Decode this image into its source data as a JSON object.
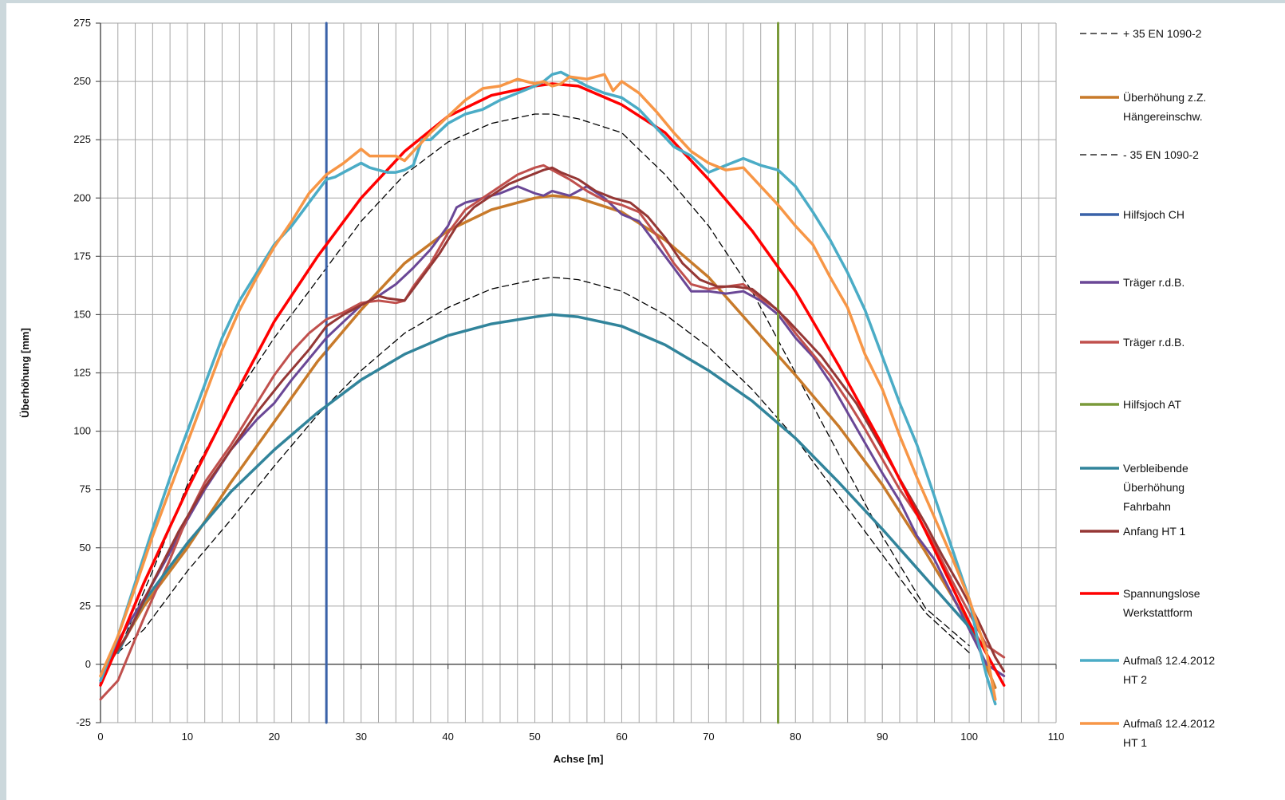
{
  "chart_data": {
    "type": "line",
    "xlabel": "Achse [m]",
    "ylabel": "Überhöhung [mm]",
    "xlim": [
      0,
      110
    ],
    "ylim": [
      -25,
      275
    ],
    "x_ticks": [
      0,
      10,
      20,
      30,
      40,
      50,
      60,
      70,
      80,
      90,
      100,
      110
    ],
    "y_ticks": [
      -25,
      0,
      25,
      50,
      75,
      100,
      125,
      150,
      175,
      200,
      225,
      250,
      275
    ],
    "x_minor_step": 2,
    "grid": "on",
    "legend_position": "right",
    "series": [
      {
        "name": "+ 35 EN 1090-2",
        "color": "#000000",
        "dashed": true,
        "width": 1.3,
        "x": [
          2,
          6,
          10,
          15,
          20,
          25,
          30,
          35,
          40,
          45,
          50,
          52,
          55,
          60,
          65,
          70,
          75,
          80,
          85,
          90,
          95,
          100
        ],
        "y": [
          5,
          40,
          77,
          112,
          140,
          165,
          190,
          210,
          224,
          232,
          236,
          236,
          234,
          228,
          210,
          188,
          160,
          125,
          90,
          55,
          24,
          8
        ]
      },
      {
        "name": "Überhöhung z.Z. Hängereinschw.",
        "color": "#c87a2a",
        "dashed": false,
        "width": 3.5,
        "x": [
          2,
          5,
          10,
          15,
          20,
          25,
          30,
          35,
          40,
          45,
          50,
          52,
          55,
          60,
          65,
          70,
          75,
          80,
          85,
          90,
          95,
          100,
          103
        ],
        "y": [
          6,
          25,
          50,
          78,
          104,
          130,
          152,
          172,
          186,
          195,
          200,
          201,
          200,
          194,
          182,
          166,
          145,
          124,
          102,
          77,
          48,
          17,
          -10
        ]
      },
      {
        "name": "- 35 EN 1090-2",
        "color": "#000000",
        "dashed": true,
        "width": 1.3,
        "x": [
          2,
          5,
          10,
          15,
          20,
          25,
          30,
          35,
          40,
          45,
          50,
          52,
          55,
          60,
          65,
          70,
          75,
          80,
          85,
          90,
          95,
          100
        ],
        "y": [
          5,
          15,
          40,
          62,
          85,
          107,
          126,
          142,
          153,
          161,
          165,
          166,
          165,
          160,
          150,
          136,
          118,
          97,
          72,
          47,
          22,
          5
        ]
      },
      {
        "name": "Hilfsjoch CH",
        "color": "#3a62a8",
        "dashed": false,
        "width": 3,
        "x": [
          26,
          26
        ],
        "y": [
          -25,
          275
        ]
      },
      {
        "name": "Träger r.d.B.",
        "color": "#6a4796",
        "dashed": false,
        "width": 3,
        "x": [
          0,
          2,
          5,
          8,
          10,
          12,
          15,
          18,
          20,
          22,
          24,
          26,
          28,
          30,
          32,
          34,
          36,
          38,
          40,
          41,
          42,
          44,
          46,
          48,
          50,
          51,
          52,
          53,
          54,
          55,
          56,
          58,
          60,
          62,
          64,
          66,
          68,
          70,
          72,
          74,
          76,
          78,
          80,
          82,
          84,
          86,
          88,
          90,
          92,
          94,
          96,
          98,
          100,
          102,
          104
        ],
        "y": [
          -8,
          10,
          28,
          48,
          62,
          75,
          92,
          105,
          112,
          122,
          131,
          140,
          147,
          154,
          158,
          163,
          170,
          178,
          188,
          196,
          198,
          200,
          202,
          205,
          202,
          201,
          203,
          202,
          201,
          203,
          205,
          200,
          193,
          190,
          180,
          170,
          160,
          160,
          159,
          160,
          156,
          150,
          140,
          132,
          121,
          108,
          95,
          82,
          70,
          55,
          45,
          30,
          15,
          0,
          -5
        ]
      },
      {
        "name": "Träger r.d.B.",
        "color": "#c0504d",
        "dashed": false,
        "width": 3,
        "x": [
          0,
          2,
          5,
          8,
          10,
          12,
          15,
          18,
          20,
          22,
          24,
          26,
          28,
          30,
          32,
          34,
          35,
          36,
          38,
          40,
          42,
          44,
          46,
          48,
          50,
          51,
          52,
          54,
          56,
          58,
          60,
          62,
          64,
          66,
          68,
          70,
          72,
          74,
          76,
          78,
          80,
          82,
          84,
          86,
          88,
          90,
          92,
          94,
          96,
          98,
          100,
          102,
          104
        ],
        "y": [
          -15,
          -7,
          20,
          45,
          63,
          78,
          94,
          112,
          124,
          134,
          142,
          148,
          151,
          155,
          156,
          155,
          156,
          162,
          172,
          185,
          195,
          200,
          205,
          210,
          213,
          214,
          212,
          208,
          203,
          199,
          197,
          194,
          184,
          172,
          163,
          161,
          162,
          163,
          157,
          152,
          142,
          133,
          124,
          113,
          101,
          88,
          75,
          64,
          51,
          36,
          22,
          8,
          3
        ]
      },
      {
        "name": "Hilfsjoch AT",
        "color": "#7a9a3a",
        "dashed": false,
        "width": 3,
        "x": [
          78,
          78
        ],
        "y": [
          -25,
          275
        ]
      },
      {
        "name": "Verbleibende Überhöhung Fahrbahn",
        "color": "#31849b",
        "dashed": false,
        "width": 3.5,
        "x": [
          2,
          5,
          10,
          15,
          20,
          25,
          30,
          35,
          40,
          45,
          50,
          52,
          55,
          60,
          65,
          70,
          75,
          80,
          85,
          90,
          95,
          100,
          102
        ],
        "y": [
          5,
          27,
          52,
          74,
          92,
          108,
          122,
          133,
          141,
          146,
          149,
          150,
          149,
          145,
          137,
          126,
          113,
          97,
          78,
          58,
          37,
          16,
          6
        ]
      },
      {
        "name": "Anfang HT 1",
        "color": "#953735",
        "dashed": false,
        "width": 3,
        "x": [
          0,
          3,
          6,
          9,
          12,
          15,
          18,
          21,
          24,
          26,
          28,
          30,
          32,
          33,
          35,
          37,
          39,
          41,
          43,
          45,
          47,
          49,
          51,
          52,
          53,
          55,
          57,
          59,
          61,
          63,
          65,
          67,
          69,
          71,
          73,
          75,
          77,
          79,
          81,
          83,
          85,
          87,
          89,
          91,
          93,
          95,
          97,
          99,
          101,
          103,
          104
        ],
        "y": [
          -5,
          12,
          35,
          57,
          76,
          92,
          108,
          122,
          135,
          145,
          150,
          154,
          158,
          157,
          156,
          166,
          176,
          188,
          196,
          201,
          206,
          209,
          212,
          213,
          211,
          208,
          203,
          200,
          198,
          192,
          183,
          172,
          165,
          162,
          162,
          161,
          155,
          148,
          140,
          132,
          122,
          112,
          99,
          86,
          73,
          60,
          46,
          33,
          19,
          3,
          -3
        ]
      },
      {
        "name": "Spannungslose Werkstattform",
        "color": "#ff0000",
        "dashed": false,
        "width": 3.5,
        "x": [
          0,
          2,
          5,
          10,
          15,
          20,
          25,
          30,
          35,
          40,
          45,
          50,
          52,
          55,
          60,
          65,
          70,
          75,
          80,
          85,
          90,
          95,
          100,
          104
        ],
        "y": [
          -9,
          8,
          35,
          75,
          112,
          147,
          175,
          200,
          220,
          235,
          244,
          248,
          249,
          248,
          240,
          228,
          208,
          186,
          160,
          128,
          94,
          57,
          18,
          -9
        ]
      },
      {
        "name": "Aufmaß 12.4.2012 HT 2",
        "color": "#4bacc6",
        "dashed": false,
        "width": 3.5,
        "x": [
          0,
          2,
          4,
          6,
          8,
          10,
          12,
          14,
          16,
          18,
          20,
          22,
          24,
          25,
          26,
          27,
          28,
          30,
          31,
          32,
          33,
          34,
          35,
          36,
          37,
          38,
          40,
          42,
          44,
          46,
          48,
          50,
          51,
          52,
          53,
          54,
          56,
          58,
          60,
          62,
          64,
          66,
          68,
          70,
          72,
          74,
          76,
          78,
          80,
          82,
          84,
          86,
          88,
          90,
          92,
          94,
          96,
          98,
          100,
          101,
          102,
          103
        ],
        "y": [
          -7,
          12,
          35,
          58,
          80,
          100,
          120,
          140,
          156,
          168,
          180,
          188,
          198,
          203,
          208,
          209,
          211,
          215,
          213,
          212,
          211,
          211,
          212,
          214,
          225,
          225,
          232,
          236,
          238,
          242,
          245,
          248,
          250,
          253,
          254,
          252,
          248,
          245,
          243,
          238,
          230,
          222,
          218,
          211,
          214,
          217,
          214,
          212,
          205,
          194,
          182,
          168,
          152,
          132,
          112,
          94,
          72,
          50,
          28,
          10,
          -5,
          -17
        ]
      },
      {
        "name": "Aufmaß 12.4.2012 HT 1",
        "color": "#f79646",
        "dashed": false,
        "width": 3.5,
        "x": [
          0,
          2,
          4,
          6,
          8,
          10,
          12,
          14,
          16,
          18,
          20,
          22,
          24,
          25,
          26,
          28,
          30,
          31,
          32,
          33,
          34,
          35,
          36,
          38,
          40,
          42,
          44,
          46,
          48,
          50,
          51,
          52,
          53,
          54,
          56,
          58,
          59,
          60,
          62,
          64,
          66,
          68,
          70,
          72,
          74,
          76,
          78,
          80,
          82,
          84,
          86,
          88,
          90,
          92,
          94,
          96,
          98,
          100,
          102,
          103
        ],
        "y": [
          -5,
          12,
          33,
          55,
          75,
          95,
          115,
          135,
          152,
          166,
          179,
          190,
          202,
          206,
          210,
          215,
          221,
          218,
          218,
          218,
          218,
          216,
          220,
          228,
          235,
          242,
          247,
          248,
          251,
          249,
          250,
          248,
          249,
          252,
          251,
          253,
          246,
          250,
          245,
          237,
          228,
          220,
          215,
          212,
          213,
          205,
          197,
          188,
          180,
          166,
          153,
          133,
          118,
          98,
          80,
          63,
          46,
          28,
          5,
          -15
        ]
      }
    ],
    "legend": [
      {
        "label": "+ 35 EN 1090-2",
        "color": "#000000",
        "dashed": true,
        "lines": [
          "+ 35 EN 1090-2"
        ]
      },
      {
        "label": "Überhöhung z.Z. Hängereinschw.",
        "color": "#c87a2a",
        "dashed": false,
        "lines": [
          "Überhöhung z.Z.",
          "Hängereinschw."
        ]
      },
      {
        "label": "- 35 EN 1090-2",
        "color": "#000000",
        "dashed": true,
        "lines": [
          "- 35 EN 1090-2"
        ]
      },
      {
        "label": "Hilfsjoch CH",
        "color": "#3a62a8",
        "dashed": false,
        "lines": [
          "Hilfsjoch CH"
        ]
      },
      {
        "label": "Träger r.d.B.",
        "color": "#6a4796",
        "dashed": false,
        "lines": [
          "Träger r.d.B."
        ]
      },
      {
        "label": "Träger r.d.B.",
        "color": "#c0504d",
        "dashed": false,
        "lines": [
          "Träger r.d.B."
        ]
      },
      {
        "label": "Hilfsjoch AT",
        "color": "#7a9a3a",
        "dashed": false,
        "lines": [
          "Hilfsjoch AT"
        ]
      },
      {
        "label": "Verbleibende Überhöhung Fahrbahn",
        "color": "#31849b",
        "dashed": false,
        "lines": [
          "Verbleibende",
          "Überhöhung",
          "Fahrbahn"
        ]
      },
      {
        "label": "Anfang HT 1",
        "color": "#953735",
        "dashed": false,
        "lines": [
          "Anfang HT 1"
        ]
      },
      {
        "label": "Spannungslose Werkstattform",
        "color": "#ff0000",
        "dashed": false,
        "lines": [
          "Spannungslose",
          "Werkstattform"
        ]
      },
      {
        "label": "Aufmaß 12.4.2012 HT 2",
        "color": "#4bacc6",
        "dashed": false,
        "lines": [
          "Aufmaß 12.4.2012",
          "HT 2"
        ]
      },
      {
        "label": "Aufmaß 12.4.2012 HT 1",
        "color": "#f79646",
        "dashed": false,
        "lines": [
          "Aufmaß 12.4.2012",
          "HT 1"
        ]
      }
    ]
  }
}
